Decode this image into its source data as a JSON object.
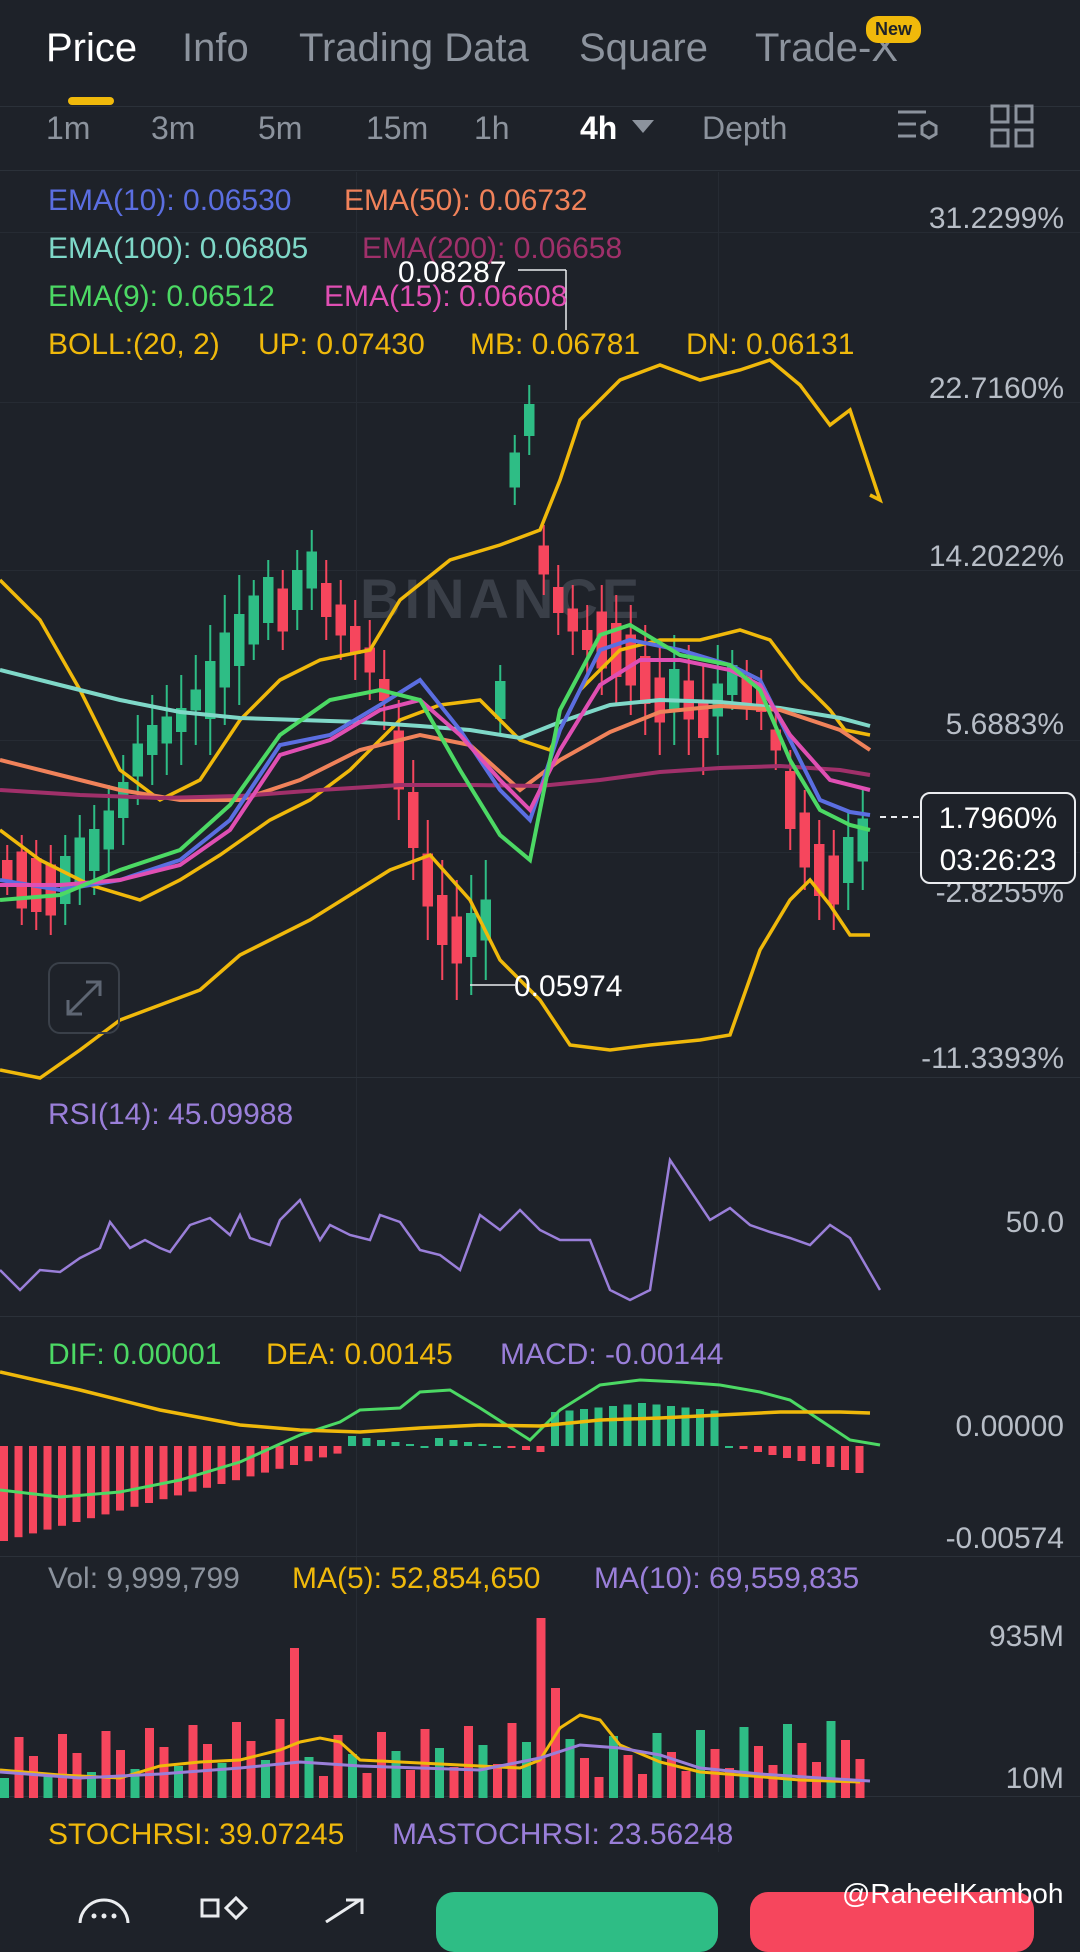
{
  "tabs": [
    {
      "label": "Price"
    },
    {
      "label": "Info"
    },
    {
      "label": "Trading Data"
    },
    {
      "label": "Square"
    },
    {
      "label": "Trade-X",
      "badge": "New"
    }
  ],
  "intervals": [
    "1m",
    "3m",
    "5m",
    "15m",
    "1h",
    "4h",
    "Depth"
  ],
  "legend": {
    "ema10": "EMA(10): 0.06530",
    "ema50": "EMA(50): 0.06732",
    "ema100": "EMA(100): 0.06805",
    "ema200": "EMA(200): 0.06658",
    "ema9": "EMA(9): 0.06512",
    "ema15": "EMA(15): 0.06608",
    "boll": "BOLL:(20, 2)",
    "up": "UP: 0.07430",
    "mb": "MB: 0.06781",
    "dn": "DN: 0.06131"
  },
  "price_axis": [
    "31.2299%",
    "22.7160%",
    "14.2022%",
    "5.6883%",
    "-2.8255%",
    "-11.3393%"
  ],
  "high_label": "0.08287",
  "low_label": "0.05974",
  "watermark": "BINANCE",
  "current": {
    "change": "1.7960%",
    "countdown": "03:26:23"
  },
  "rsi": {
    "label": "RSI(14): 45.09988",
    "axis": "50.0"
  },
  "macd": {
    "dif": "DIF: 0.00001",
    "dea": "DEA: 0.00145",
    "macd": "MACD: -0.00144",
    "axis_top": "0.00000",
    "axis_bottom": "-0.00574"
  },
  "volume": {
    "vol": "Vol: 9,999,799",
    "ma5": "MA(5): 52,854,650",
    "ma10": "MA(10): 69,559,835",
    "axis_top": "935M",
    "axis_bottom": "10M"
  },
  "stochrsi": {
    "stoch": "STOCHRSI: 39.07245",
    "ma": "MASTOCHRSI: 23.56248"
  },
  "credit": "@RaheelKamboh",
  "colors": {
    "up": "#2ebd85",
    "down": "#f6465d",
    "ema10": "#5b6ee1",
    "ema50": "#f0825a",
    "ema100": "#7fd8c8",
    "ema200": "#a0306a",
    "ema9": "#4cd964",
    "ema15": "#e04fb3",
    "boll": "#f0b90b",
    "rsi": "#9a7fd9",
    "accent": "#f0b90b"
  },
  "icons": [
    "chart-settings-icon",
    "grid-layout-icon",
    "expand-icon",
    "more-icon",
    "layout-icon",
    "share-icon"
  ]
}
